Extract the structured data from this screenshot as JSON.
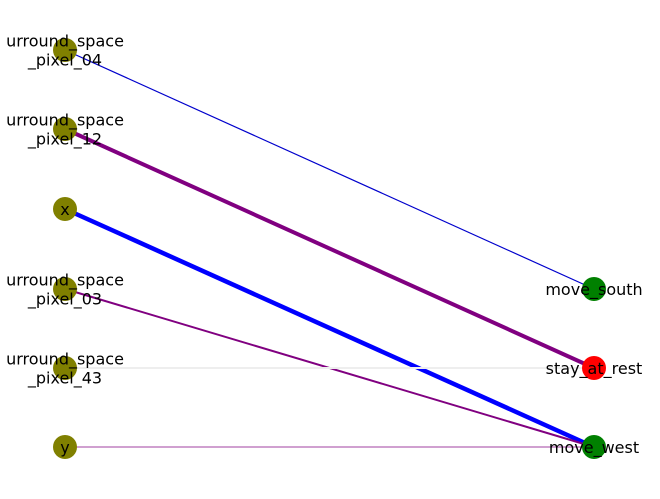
{
  "graph": {
    "type": "bipartite-network",
    "input_nodes": [
      {
        "id": "sp04",
        "label_lines": [
          "urround_space",
          "_pixel_04"
        ],
        "color": "#808000"
      },
      {
        "id": "sp12",
        "label_lines": [
          "urround_space",
          "_pixel_12"
        ],
        "color": "#808000"
      },
      {
        "id": "x",
        "label_lines": [
          "x"
        ],
        "color": "#808000"
      },
      {
        "id": "sp03",
        "label_lines": [
          "urround_space",
          "_pixel_03"
        ],
        "color": "#808000"
      },
      {
        "id": "sp43",
        "label_lines": [
          "urround_space",
          "_pixel_43"
        ],
        "color": "#808000"
      },
      {
        "id": "y",
        "label_lines": [
          "y"
        ],
        "color": "#808000"
      }
    ],
    "output_nodes": [
      {
        "id": "move_south",
        "label_lines": [
          "move_south"
        ],
        "color": "#008000"
      },
      {
        "id": "stay_at_rest",
        "label_lines": [
          "stay_at_rest"
        ],
        "color": "#ff0000"
      },
      {
        "id": "move_west",
        "label_lines": [
          "move_west"
        ],
        "color": "#008000"
      }
    ],
    "edges": [
      {
        "from": "sp04",
        "to": "move_south",
        "color": "#0000cc",
        "weight": 1.2
      },
      {
        "from": "sp12",
        "to": "stay_at_rest",
        "color": "#800080",
        "weight": 4
      },
      {
        "from": "x",
        "to": "move_west",
        "color": "#0000ff",
        "weight": 4.5
      },
      {
        "from": "sp03",
        "to": "move_west",
        "color": "#800080",
        "weight": 2
      },
      {
        "from": "sp43",
        "to": "stay_at_rest",
        "color": "#eeeeee",
        "weight": 2
      },
      {
        "from": "y",
        "to": "move_west",
        "color": "#800080",
        "weight": 0.8
      }
    ]
  }
}
